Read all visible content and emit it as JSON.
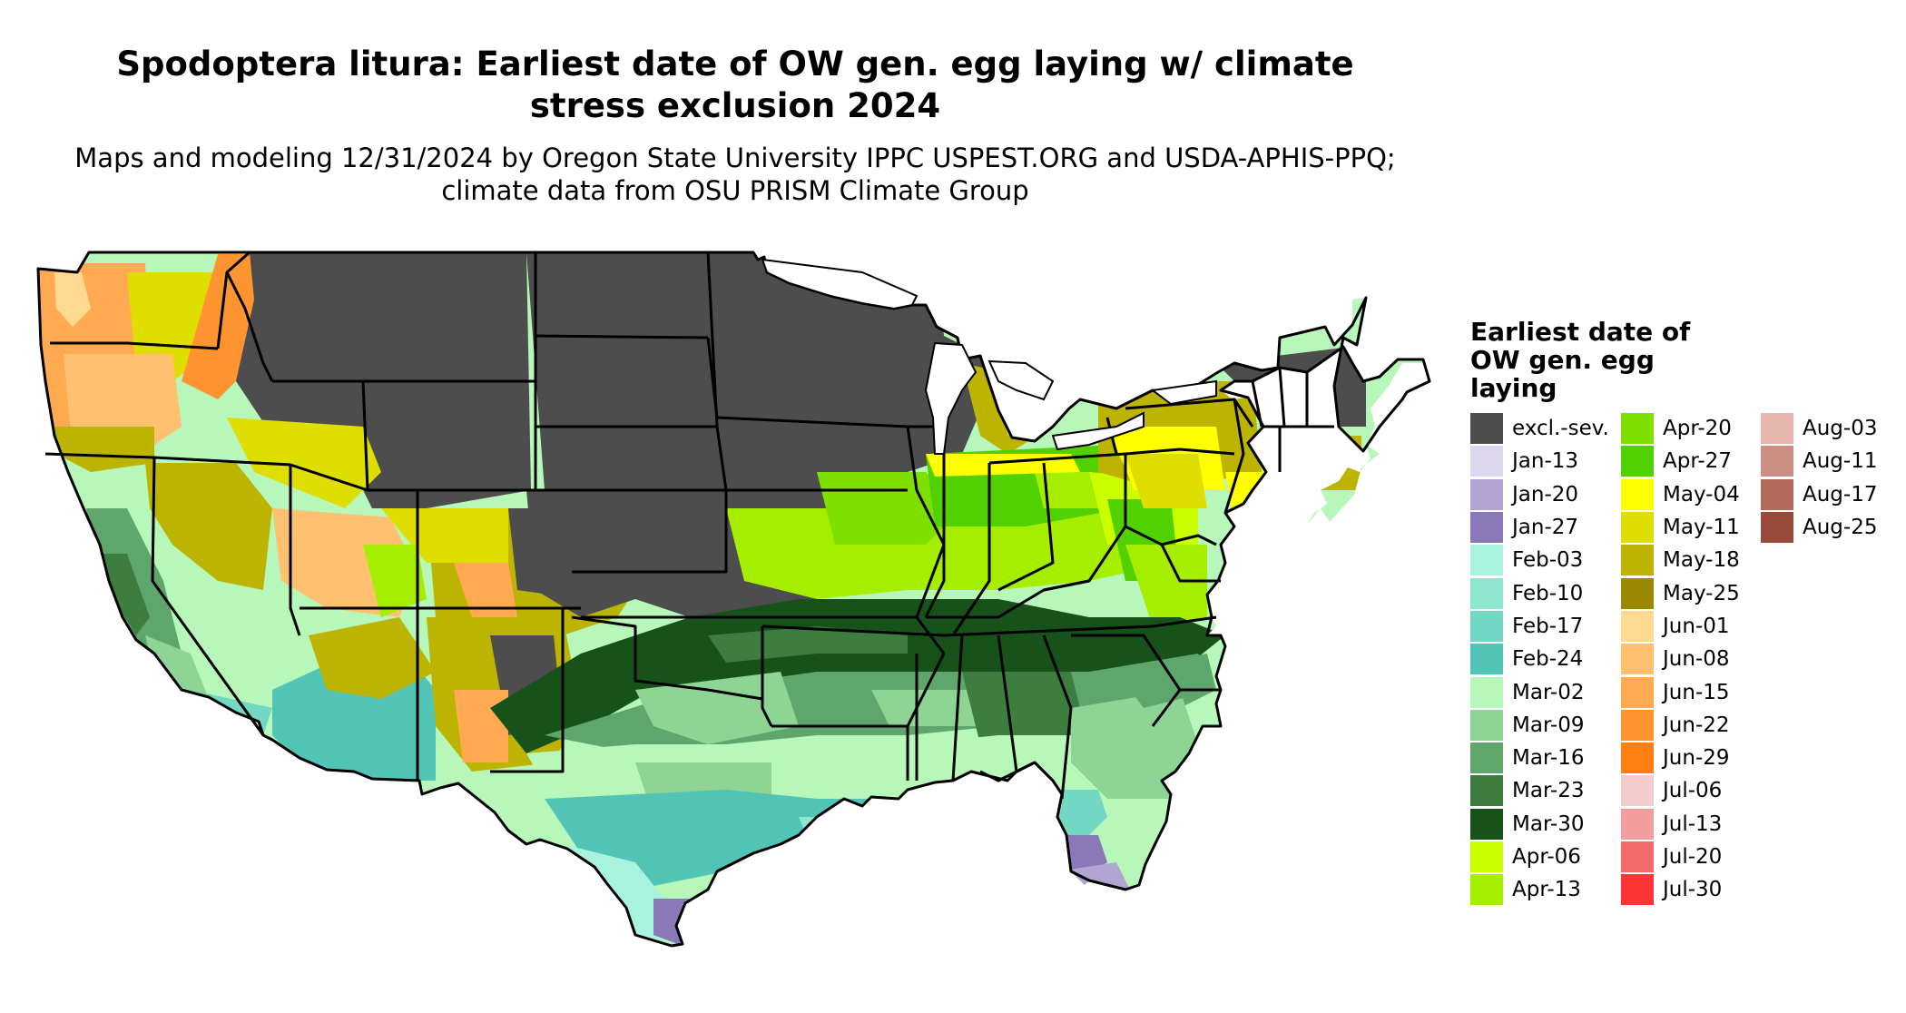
{
  "title": "Spodoptera litura: Earliest date of OW gen. egg laying w/ climate stress exclusion 2024",
  "subtitle": "Maps and modeling 12/31/2024 by Oregon State University IPPC USPEST.ORG and USDA-APHIS-PPQ; climate data from OSU PRISM Climate Group",
  "legend": {
    "title": "Earliest date of OW gen. egg laying",
    "items": [
      {
        "label": "excl.-sev.",
        "color": "#4d4d4d"
      },
      {
        "label": "Jan-13",
        "color": "#dcd6ee"
      },
      {
        "label": "Jan-20",
        "color": "#b2a5d2"
      },
      {
        "label": "Jan-27",
        "color": "#8a78b8"
      },
      {
        "label": "Feb-03",
        "color": "#a9f2de"
      },
      {
        "label": "Feb-10",
        "color": "#8ee6cf"
      },
      {
        "label": "Feb-17",
        "color": "#72d7c3"
      },
      {
        "label": "Feb-24",
        "color": "#52c4b5"
      },
      {
        "label": "Mar-02",
        "color": "#b7f7b9"
      },
      {
        "label": "Mar-09",
        "color": "#8ed494"
      },
      {
        "label": "Mar-16",
        "color": "#5fa66c"
      },
      {
        "label": "Mar-23",
        "color": "#3d7d40"
      },
      {
        "label": "Mar-30",
        "color": "#16521a"
      },
      {
        "label": "Apr-06",
        "color": "#ccff00"
      },
      {
        "label": "Apr-13",
        "color": "#a6ee00"
      },
      {
        "label": "Apr-20",
        "color": "#7fe000"
      },
      {
        "label": "Apr-27",
        "color": "#52d100"
      },
      {
        "label": "May-04",
        "color": "#ffff00"
      },
      {
        "label": "May-11",
        "color": "#dede00"
      },
      {
        "label": "May-18",
        "color": "#bcb400"
      },
      {
        "label": "May-25",
        "color": "#9a8900"
      },
      {
        "label": "Jun-01",
        "color": "#ffd990"
      },
      {
        "label": "Jun-08",
        "color": "#ffc070"
      },
      {
        "label": "Jun-15",
        "color": "#ffaa50"
      },
      {
        "label": "Jun-22",
        "color": "#ff9530"
      },
      {
        "label": "Jun-29",
        "color": "#ff7f10"
      },
      {
        "label": "Jul-06",
        "color": "#f3cdcd"
      },
      {
        "label": "Jul-13",
        "color": "#f39d9d"
      },
      {
        "label": "Jul-20",
        "color": "#f46a6a"
      },
      {
        "label": "Jul-30",
        "color": "#fb3535"
      },
      {
        "label": "Aug-03",
        "color": "#e8b8ae"
      },
      {
        "label": "Aug-11",
        "color": "#cc8f84"
      },
      {
        "label": "Aug-17",
        "color": "#b46b5d"
      },
      {
        "label": "Aug-25",
        "color": "#9a4a3a"
      }
    ]
  },
  "map_colors": {
    "excluded": "#4d4d4d",
    "boundary": "#000000"
  }
}
